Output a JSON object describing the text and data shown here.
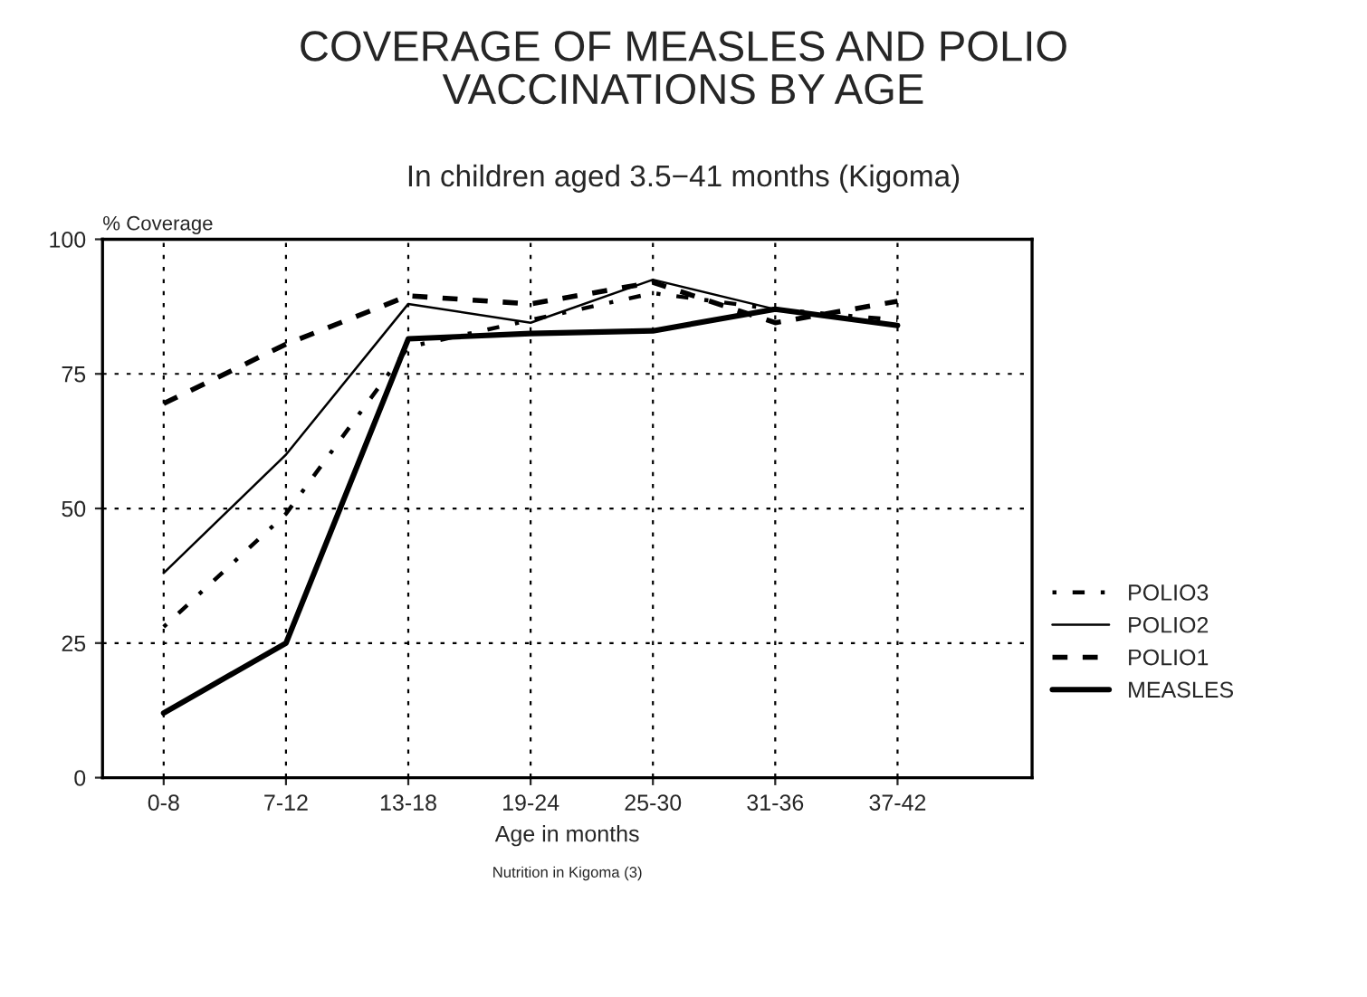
{
  "chart_data": {
    "type": "line",
    "title": "COVERAGE OF MEASLES AND POLIO\nVACCINATIONS BY AGE",
    "subtitle": "In children aged 3.5−41 months (Kigoma)",
    "xlabel": "Age in months",
    "ylabel": "% Coverage",
    "categories": [
      "0-8",
      "7-12",
      "13-18",
      "19-24",
      "25-30",
      "31-36",
      "37-42"
    ],
    "series": [
      {
        "name": "POLIO3",
        "color": "#000000",
        "line_style": "dotted",
        "values": [
          28,
          49,
          80,
          85,
          90,
          87,
          85
        ]
      },
      {
        "name": "POLIO2",
        "color": "#000000",
        "line_style": "solid",
        "values": [
          38,
          60,
          88,
          84.5,
          92.5,
          87,
          84
        ]
      },
      {
        "name": "POLIO1",
        "color": "#000000",
        "line_style": "dashed",
        "values": [
          69.5,
          80.5,
          89.5,
          88,
          92,
          84.5,
          88.5
        ]
      },
      {
        "name": "MEASLES",
        "color": "#000000",
        "line_style": "solid",
        "values": [
          12,
          25,
          81.5,
          82.5,
          83,
          87,
          84
        ]
      }
    ],
    "ylim": [
      0,
      100
    ],
    "yticks": [
      0,
      25,
      50,
      75,
      100
    ],
    "grid": true,
    "legend": "right",
    "marker": "none",
    "annotations": [
      "Nutrition in Kigoma (3)"
    ]
  }
}
